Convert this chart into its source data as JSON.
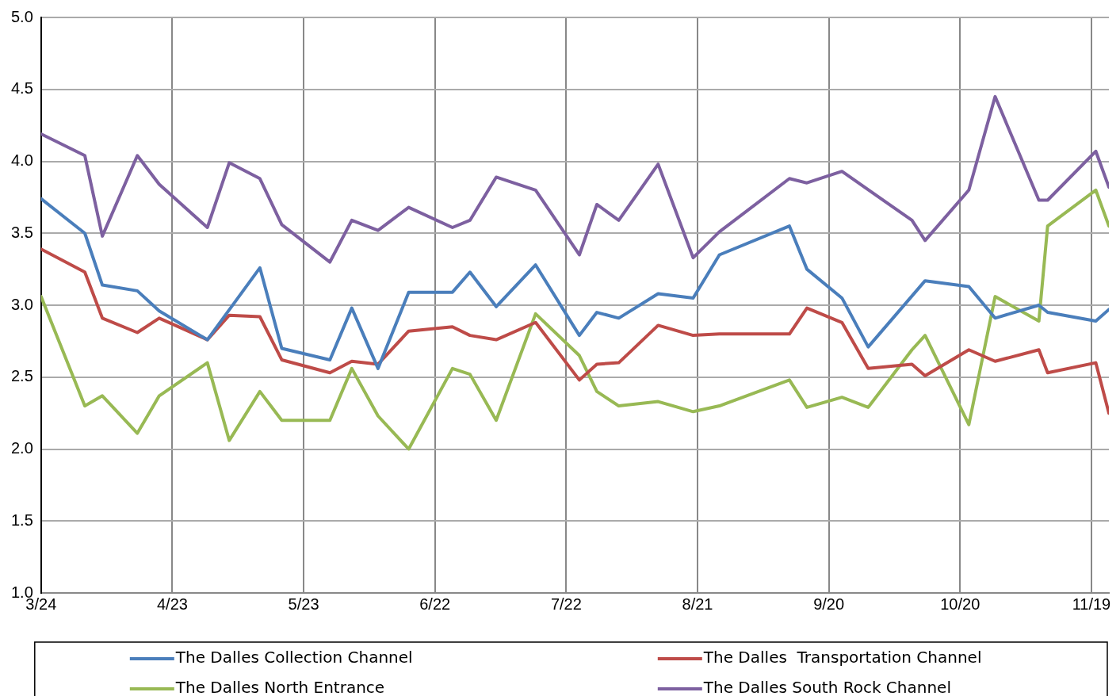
{
  "chart_data": {
    "type": "line",
    "xlim": [
      "--03-24",
      "--11-23"
    ],
    "xticks": [
      {
        "value": "--03-24",
        "label": "3/24"
      },
      {
        "value": "--04-23",
        "label": "4/23"
      },
      {
        "value": "--05-23",
        "label": "5/23"
      },
      {
        "value": "--06-22",
        "label": "6/22"
      },
      {
        "value": "--07-22",
        "label": "7/22"
      },
      {
        "value": "--08-21",
        "label": "8/21"
      },
      {
        "value": "--09-20",
        "label": "9/20"
      },
      {
        "value": "--10-20",
        "label": "10/20"
      },
      {
        "value": "--11-19",
        "label": "11/19"
      }
    ],
    "ylim": [
      1,
      5
    ],
    "yticks": [
      {
        "value": 1,
        "label": "1.0"
      },
      {
        "value": 1.5,
        "label": "1.5"
      },
      {
        "value": 2,
        "label": "2.0"
      },
      {
        "value": 2.5,
        "label": "2.5"
      },
      {
        "value": 3,
        "label": "3.0"
      },
      {
        "value": 3.5,
        "label": "3.5"
      },
      {
        "value": 4,
        "label": "4.0"
      },
      {
        "value": 4.5,
        "label": "4.5"
      },
      {
        "value": 5,
        "label": "5.0"
      }
    ],
    "grid": true,
    "legend": "bottom",
    "marker": "none",
    "line_style": "solid",
    "series": [
      {
        "name": "The Dalles Collection Channel",
        "color": "#4a7ebb",
        "x": [
          "--03-24",
          "--04-03",
          "--04-07",
          "--04-15",
          "--04-20",
          "--05-01",
          "--05-13",
          "--05-18",
          "--05-29",
          "--06-03",
          "--06-09",
          "--06-16",
          "--06-26",
          "--06-30",
          "--07-06",
          "--07-15",
          "--07-25",
          "--07-29",
          "--08-03",
          "--08-12",
          "--08-20",
          "--08-26",
          "--09-11",
          "--09-15",
          "--09-23",
          "--09-29",
          "--10-12",
          "--10-22",
          "--10-28",
          "--11-07",
          "--11-09",
          "--11-20",
          "--11-23"
        ],
        "values": [
          3.74,
          3.5,
          3.14,
          3.1,
          2.96,
          2.76,
          3.26,
          2.7,
          2.62,
          2.98,
          2.56,
          3.09,
          3.09,
          3.23,
          2.99,
          3.28,
          2.79,
          2.95,
          2.91,
          3.08,
          3.05,
          3.35,
          3.55,
          3.25,
          3.05,
          2.71,
          3.17,
          3.13,
          2.91,
          3.0,
          2.95,
          2.89,
          2.97
        ]
      },
      {
        "name": "The Dalles  Transportation Channel",
        "color": "#be4b48",
        "x": [
          "--03-24",
          "--04-03",
          "--04-07",
          "--04-15",
          "--04-20",
          "--05-01",
          "--05-06",
          "--05-13",
          "--05-18",
          "--05-29",
          "--06-03",
          "--06-09",
          "--06-16",
          "--06-26",
          "--06-30",
          "--07-06",
          "--07-15",
          "--07-25",
          "--07-29",
          "--08-03",
          "--08-12",
          "--08-20",
          "--08-26",
          "--09-11",
          "--09-15",
          "--09-23",
          "--09-29",
          "--10-09",
          "--10-12",
          "--10-22",
          "--10-28",
          "--11-07",
          "--11-09",
          "--11-20",
          "--11-23"
        ],
        "values": [
          3.39,
          3.23,
          2.91,
          2.81,
          2.91,
          2.76,
          2.93,
          2.92,
          2.62,
          2.53,
          2.61,
          2.59,
          2.82,
          2.85,
          2.79,
          2.76,
          2.88,
          2.48,
          2.59,
          2.6,
          2.86,
          2.79,
          2.8,
          2.8,
          2.98,
          2.88,
          2.56,
          2.59,
          2.51,
          2.69,
          2.61,
          2.69,
          2.53,
          2.6,
          2.25
        ]
      },
      {
        "name": "The Dalles North Entrance",
        "color": "#98b954",
        "x": [
          "--03-24",
          "--04-03",
          "--04-07",
          "--04-15",
          "--04-20",
          "--05-01",
          "--05-06",
          "--05-13",
          "--05-18",
          "--05-29",
          "--06-03",
          "--06-09",
          "--06-16",
          "--06-26",
          "--06-30",
          "--07-06",
          "--07-15",
          "--07-25",
          "--07-29",
          "--08-03",
          "--08-12",
          "--08-20",
          "--08-26",
          "--09-11",
          "--09-15",
          "--09-23",
          "--09-29",
          "--10-09",
          "--10-12",
          "--10-22",
          "--10-28",
          "--11-07",
          "--11-09",
          "--11-20",
          "--11-23"
        ],
        "values": [
          3.06,
          2.3,
          2.37,
          2.11,
          2.37,
          2.6,
          2.06,
          2.4,
          2.2,
          2.2,
          2.56,
          2.23,
          2.0,
          2.56,
          2.52,
          2.2,
          2.94,
          2.65,
          2.4,
          2.3,
          2.33,
          2.26,
          2.3,
          2.48,
          2.29,
          2.36,
          2.29,
          2.69,
          2.79,
          2.17,
          3.06,
          2.89,
          3.55,
          3.8,
          3.55
        ]
      },
      {
        "name": "The Dalles South Rock Channel",
        "color": "#7d60a0",
        "x": [
          "--03-24",
          "--04-03",
          "--04-07",
          "--04-15",
          "--04-20",
          "--05-01",
          "--05-06",
          "--05-13",
          "--05-18",
          "--05-29",
          "--06-03",
          "--06-09",
          "--06-16",
          "--06-26",
          "--06-30",
          "--07-06",
          "--07-15",
          "--07-25",
          "--07-29",
          "--08-03",
          "--08-12",
          "--08-20",
          "--08-26",
          "--09-11",
          "--09-15",
          "--09-23",
          "--10-09",
          "--10-12",
          "--10-22",
          "--10-28",
          "--11-07",
          "--11-09",
          "--11-20",
          "--11-23"
        ],
        "values": [
          4.19,
          4.04,
          3.48,
          4.04,
          3.84,
          3.54,
          3.99,
          3.88,
          3.56,
          3.3,
          3.59,
          3.52,
          3.68,
          3.54,
          3.59,
          3.89,
          3.8,
          3.35,
          3.7,
          3.59,
          3.98,
          3.33,
          3.51,
          3.88,
          3.85,
          3.93,
          3.59,
          3.45,
          3.8,
          4.45,
          3.73,
          3.73,
          4.07,
          3.82
        ]
      }
    ]
  }
}
